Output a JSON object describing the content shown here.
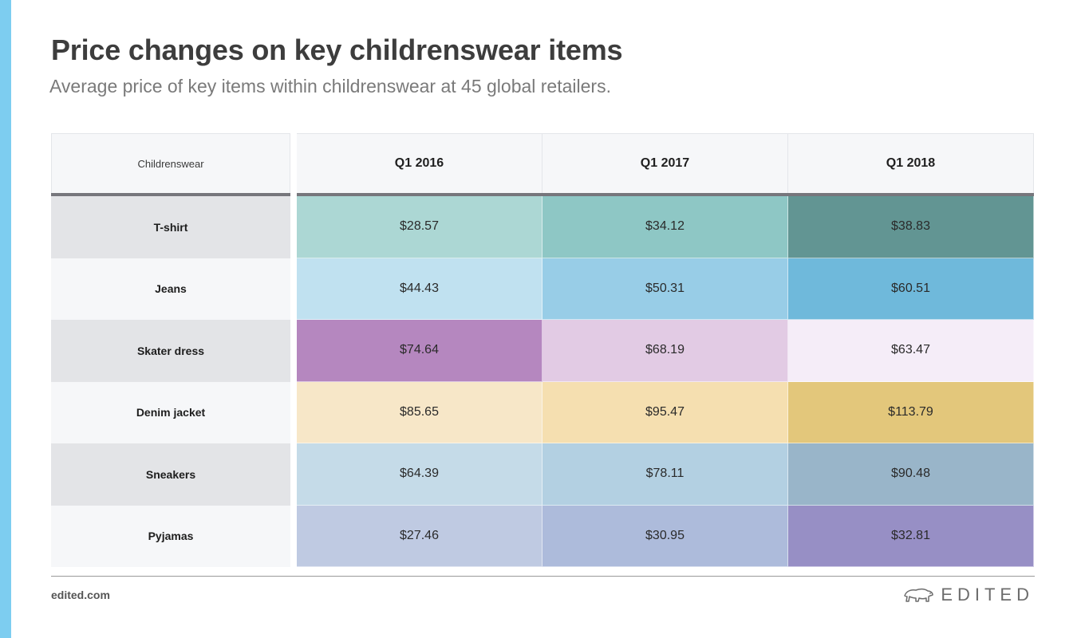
{
  "colors": {
    "accent_bar": "#7dcdf0"
  },
  "header": {
    "title": "Price changes on key childrenswear items",
    "subtitle": "Average price of key items within childrenswear at 45 global retailers."
  },
  "footer": {
    "site": "edited.com",
    "brand": "EDITED",
    "brand_icon": "polar-bear-icon"
  },
  "chart_data": {
    "type": "heatmap",
    "title": "Price changes on key childrenswear items",
    "subtitle": "Average price of key items within childrenswear at 45 global retailers.",
    "corner_label": "Childrenswear",
    "columns": [
      "Q1 2016",
      "Q1 2017",
      "Q1 2018"
    ],
    "rows": [
      {
        "label": "T-shirt",
        "label_bg": "#e3e4e7",
        "values": [
          "$28.57",
          "$34.12",
          "$38.83"
        ],
        "colors": [
          "#acd7d4",
          "#8ec7c5",
          "#629593"
        ]
      },
      {
        "label": "Jeans",
        "label_bg": "#f6f7f9",
        "values": [
          "$44.43",
          "$50.31",
          "$60.51"
        ],
        "colors": [
          "#c0e1f0",
          "#98cde7",
          "#6fb9db"
        ]
      },
      {
        "label": "Skater dress",
        "label_bg": "#e3e4e7",
        "values": [
          "$74.64",
          "$68.19",
          "$63.47"
        ],
        "colors": [
          "#b587bf",
          "#e2cbe4",
          "#f5edf8"
        ]
      },
      {
        "label": "Denim jacket",
        "label_bg": "#f6f7f9",
        "values": [
          "$85.65",
          "$95.47",
          "$113.79"
        ],
        "colors": [
          "#f7e7c8",
          "#f5dfb0",
          "#e3c77b"
        ]
      },
      {
        "label": "Sneakers",
        "label_bg": "#e3e4e7",
        "values": [
          "$64.39",
          "$78.11",
          "$90.48"
        ],
        "colors": [
          "#c5dbe8",
          "#b3d0e2",
          "#99b5c9"
        ]
      },
      {
        "label": "Pyjamas",
        "label_bg": "#f6f7f9",
        "values": [
          "$27.46",
          "$30.95",
          "$32.81"
        ],
        "colors": [
          "#bfcae2",
          "#adbbdb",
          "#978fc5"
        ]
      }
    ]
  }
}
